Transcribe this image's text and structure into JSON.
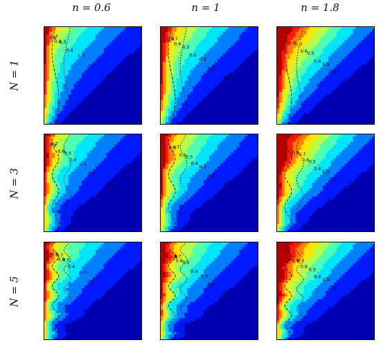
{
  "chart_data": {
    "type": "heatmap",
    "colormap": "jet",
    "column_labels": [
      "n = 0.6",
      "n = 1",
      "n = 1.8"
    ],
    "row_labels": [
      "N = 1",
      "N = 3",
      "N = 5"
    ],
    "grid": false,
    "panels": [
      {
        "row": "N = 1",
        "col": "n = 0.6",
        "level_labels": [
          "0.8",
          "0.7",
          "0.6",
          "0.5",
          "0.4",
          "0.3",
          "0.2",
          "0.1"
        ]
      },
      {
        "row": "N = 1",
        "col": "n = 1",
        "level_labels": [
          "0.8",
          "0.7",
          "0.6",
          "0.5",
          "0.4",
          "0.3",
          "0.2",
          "0.1"
        ]
      },
      {
        "row": "N = 1",
        "col": "n = 1.8",
        "level_labels": [
          "0.8",
          "0.7",
          "0.6",
          "0.5",
          "0.4",
          "0.3",
          "0.2",
          "0.1"
        ]
      },
      {
        "row": "N = 3",
        "col": "n = 0.6",
        "level_labels": [
          "0.8",
          "0.7",
          "0.6",
          "0.5",
          "0.4",
          "0.3",
          "0.2",
          "0.1"
        ]
      },
      {
        "row": "N = 3",
        "col": "n = 1",
        "level_labels": [
          "0.8",
          "0.7",
          "0.6",
          "0.5",
          "0.4",
          "0.3",
          "0.2",
          "0.1"
        ]
      },
      {
        "row": "N = 3",
        "col": "n = 1.8",
        "level_labels": [
          "0.8",
          "0.7",
          "0.6",
          "0.5",
          "0.4",
          "0.3",
          "0.2",
          "0.1"
        ]
      },
      {
        "row": "N = 5",
        "col": "n = 0.6",
        "level_labels": [
          "0.8",
          "0.7",
          "0.6",
          "0.5",
          "0.4",
          "0.3",
          "0.2",
          "0.1"
        ]
      },
      {
        "row": "N = 5",
        "col": "n = 1",
        "level_labels": [
          "0.8",
          "0.7",
          "0.6",
          "0.5",
          "0.4",
          "0.3",
          "0.2",
          "0.1"
        ]
      },
      {
        "row": "N = 5",
        "col": "n = 1.8",
        "level_labels": [
          "0.8",
          "0.7",
          "0.6",
          "0.5",
          "0.4",
          "0.3",
          "0.2",
          "0.1"
        ]
      }
    ]
  }
}
